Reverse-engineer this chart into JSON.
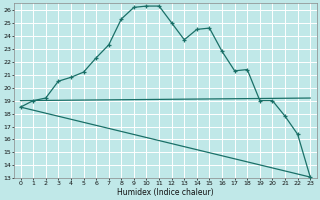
{
  "xlabel": "Humidex (Indice chaleur)",
  "bg_color": "#c0e8e8",
  "grid_color": "#ffffff",
  "line_color": "#1a7068",
  "xlim": [
    -0.5,
    23.5
  ],
  "ylim": [
    13,
    26.5
  ],
  "xticks": [
    0,
    1,
    2,
    3,
    4,
    5,
    6,
    7,
    8,
    9,
    10,
    11,
    12,
    13,
    14,
    15,
    16,
    17,
    18,
    19,
    20,
    21,
    22,
    23
  ],
  "yticks": [
    13,
    14,
    15,
    16,
    17,
    18,
    19,
    20,
    21,
    22,
    23,
    24,
    25,
    26
  ],
  "curve1_x": [
    0,
    1,
    2,
    3,
    4,
    5,
    6,
    7,
    8,
    9,
    10,
    11,
    12,
    13,
    14,
    15,
    16,
    17,
    18,
    19,
    20,
    21,
    22,
    23
  ],
  "curve1_y": [
    18.5,
    19.0,
    19.2,
    20.5,
    20.8,
    21.2,
    22.3,
    23.3,
    25.3,
    26.2,
    26.3,
    26.3,
    25.0,
    23.7,
    24.5,
    24.6,
    22.8,
    21.3,
    21.4,
    19.0,
    19.0,
    17.8,
    16.4,
    13.1
  ],
  "curve2_x": [
    0,
    23
  ],
  "curve2_y": [
    19.0,
    19.2
  ],
  "curve3_x": [
    0,
    23
  ],
  "curve3_y": [
    18.5,
    13.1
  ]
}
